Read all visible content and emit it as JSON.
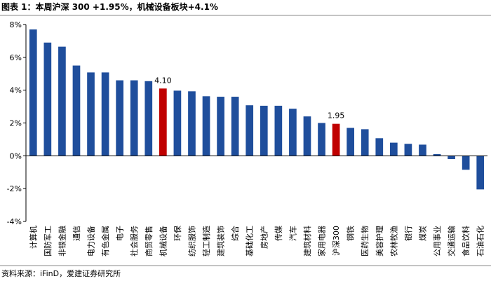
{
  "chart_data": {
    "type": "bar",
    "title": "图表 1：本周沪深 300 +1.95%，机械设备板块+4.1%",
    "source": "资料来源：iFinD，爱建证券研究所",
    "categories": [
      "计算机",
      "国防军工",
      "非银金融",
      "通信",
      "电力设备",
      "有色金属",
      "电子",
      "社会服务",
      "商贸零售",
      "机械设备",
      "环保",
      "纺织服饰",
      "轻工制造",
      "建筑装饰",
      "综合",
      "基础化工",
      "房地产",
      "传媒",
      "汽车",
      "建筑材料",
      "家用电器",
      "沪深300",
      "钢铁",
      "医药生物",
      "美容护理",
      "农林牧渔",
      "银行",
      "煤炭",
      "公用事业",
      "交通运输",
      "食品饮料",
      "石油石化"
    ],
    "values": [
      7.7,
      6.9,
      6.65,
      5.5,
      5.08,
      5.08,
      4.6,
      4.6,
      4.55,
      4.1,
      3.97,
      3.93,
      3.63,
      3.6,
      3.6,
      3.08,
      3.05,
      3.05,
      2.87,
      2.4,
      2.0,
      1.95,
      1.7,
      1.62,
      1.07,
      0.8,
      0.73,
      0.68,
      0.1,
      -0.2,
      -0.85,
      -2.05
    ],
    "value_labels": [
      null,
      null,
      null,
      null,
      null,
      null,
      null,
      null,
      null,
      "4.10",
      null,
      null,
      null,
      null,
      null,
      null,
      null,
      null,
      null,
      null,
      null,
      "1.95",
      null,
      null,
      null,
      null,
      null,
      null,
      null,
      null,
      null,
      null
    ],
    "colors": [
      "#1f4e9c",
      "#1f4e9c",
      "#1f4e9c",
      "#1f4e9c",
      "#1f4e9c",
      "#1f4e9c",
      "#1f4e9c",
      "#1f4e9c",
      "#1f4e9c",
      "#c00000",
      "#1f4e9c",
      "#1f4e9c",
      "#1f4e9c",
      "#1f4e9c",
      "#1f4e9c",
      "#1f4e9c",
      "#1f4e9c",
      "#1f4e9c",
      "#1f4e9c",
      "#1f4e9c",
      "#1f4e9c",
      "#c00000",
      "#1f4e9c",
      "#1f4e9c",
      "#1f4e9c",
      "#1f4e9c",
      "#1f4e9c",
      "#1f4e9c",
      "#1f4e9c",
      "#1f4e9c",
      "#1f4e9c",
      "#1f4e9c"
    ],
    "ylim": [
      -4,
      8
    ],
    "yticks": [
      {
        "value": -4,
        "label": "-4%"
      },
      {
        "value": -2,
        "label": "-2%"
      },
      {
        "value": 0,
        "label": "0%"
      },
      {
        "value": 2,
        "label": "2%"
      },
      {
        "value": 4,
        "label": "4%"
      },
      {
        "value": 6,
        "label": "6%"
      },
      {
        "value": 8,
        "label": "8%"
      }
    ]
  }
}
